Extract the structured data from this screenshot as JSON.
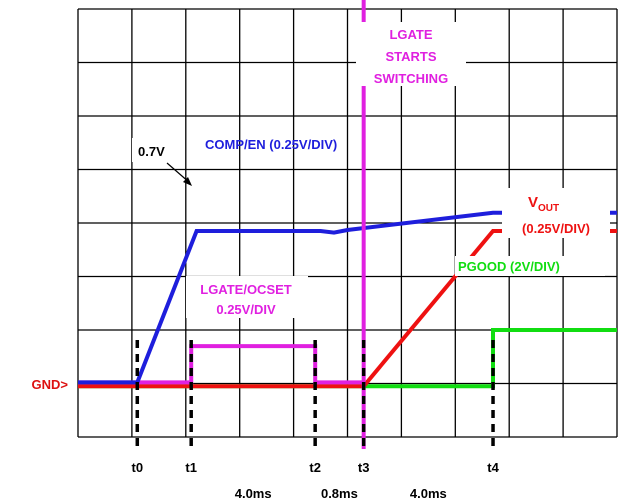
{
  "chart_data": {
    "type": "line",
    "grid": true,
    "grid_divisions": {
      "x": 10,
      "y": 8
    },
    "gnd_marker": "GND>",
    "colors": {
      "comp": "#1e1edc",
      "lgate": "#e020e0",
      "vout": "#ee1111",
      "pgood": "#11dd11",
      "gnd_label": "#dd1111",
      "grid": "#000000"
    },
    "series": [
      {
        "name": "COMP/EN (0.25V/DIV)",
        "key": "comp",
        "points": [
          [
            0,
            1.02
          ],
          [
            1.1,
            1.02
          ],
          [
            2.2,
            3.85
          ],
          [
            4.5,
            3.85
          ],
          [
            4.75,
            3.82
          ],
          [
            5.0,
            3.87
          ],
          [
            7.7,
            4.19
          ],
          [
            10,
            4.19
          ]
        ]
      },
      {
        "name": "LGATE/OCSET 0.25V/DIV",
        "key": "lgate",
        "points": [
          [
            0,
            1.02
          ],
          [
            2.1,
            1.02
          ],
          [
            2.1,
            1.7
          ],
          [
            4.4,
            1.7
          ],
          [
            4.4,
            1.02
          ],
          [
            5.3,
            1.02
          ]
        ]
      },
      {
        "name": "VOUT (0.25V/DIV)",
        "key": "vout",
        "points": [
          [
            0,
            0.95
          ],
          [
            5.3,
            0.95
          ],
          [
            7.7,
            3.85
          ],
          [
            10,
            3.85
          ]
        ]
      },
      {
        "name": "PGOOD (2V/DIV)",
        "key": "pgood",
        "points": [
          [
            0,
            0.95
          ],
          [
            7.7,
            0.95
          ],
          [
            7.7,
            2.0
          ],
          [
            10,
            2.0
          ]
        ]
      }
    ],
    "lgate_switching_x": 5.3,
    "annotations": {
      "comp_label": "COMP/EN (0.25V/DIV)",
      "v_0_7": "0.7V",
      "lgate_starts": [
        "LGATE",
        "STARTS",
        "SWITCHING"
      ],
      "lgate_ocset": [
        "LGATE/OCSET",
        "0.25V/DIV"
      ],
      "vout_main": "V",
      "vout_sub": "OUT",
      "vout_scale": "(0.25V/DIV)",
      "pgood_label": "PGOOD (2V/DIV)"
    },
    "time_markers": [
      {
        "label": "t0",
        "x": 1.1
      },
      {
        "label": "t1",
        "x": 2.1
      },
      {
        "label": "t2",
        "x": 4.4
      },
      {
        "label": "t3",
        "x": 5.3
      },
      {
        "label": "t4",
        "x": 7.7
      }
    ],
    "intervals": [
      {
        "label": "4.0ms",
        "from": 2.1,
        "to": 4.4
      },
      {
        "label": "0.8ms",
        "from": 4.4,
        "to": 5.3
      },
      {
        "label": "4.0ms",
        "from": 5.3,
        "to": 7.7
      }
    ]
  }
}
